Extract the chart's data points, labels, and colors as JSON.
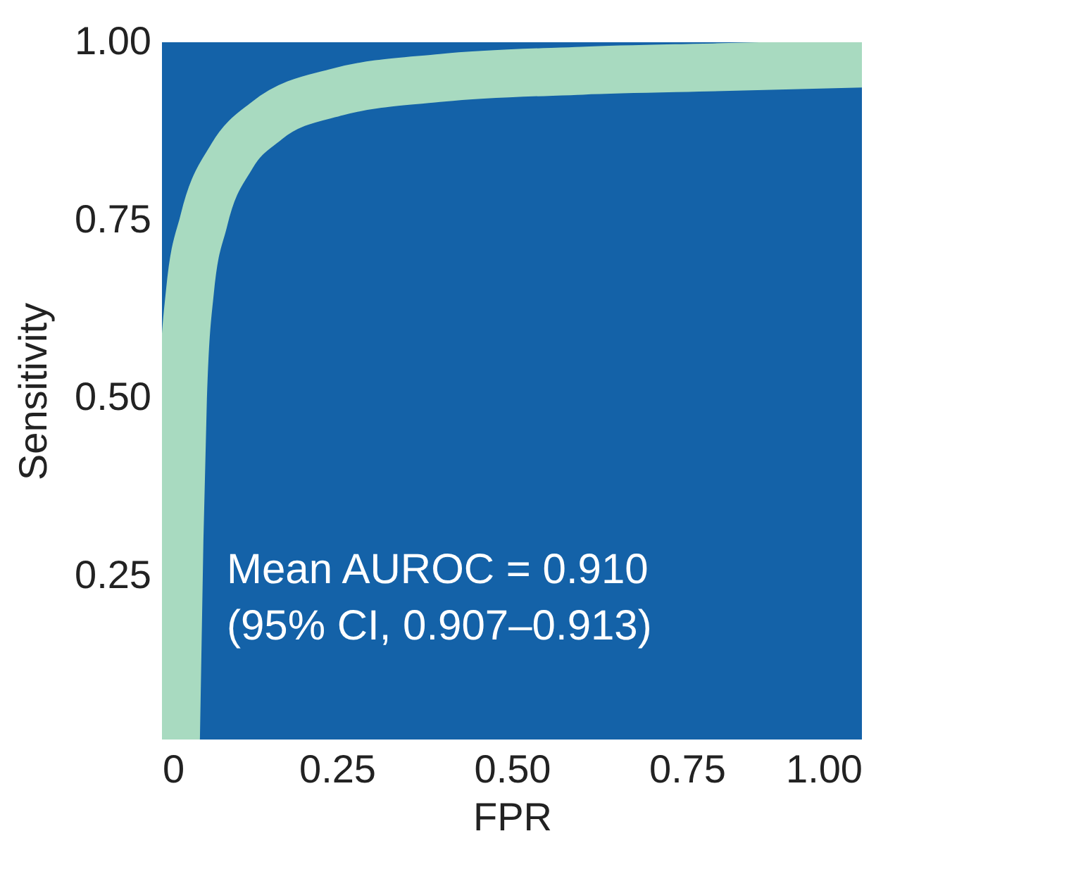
{
  "chart_data": {
    "type": "line",
    "xlabel": "FPR",
    "ylabel": "Sensitivity",
    "x": [
      0.02,
      0.025,
      0.03,
      0.04,
      0.06,
      0.1,
      0.15,
      0.25,
      0.4,
      0.6,
      0.8,
      1.0
    ],
    "series": [
      {
        "color": "#b8e8c2",
        "values": [
          0.02,
          0.3,
          0.5,
          0.65,
          0.75,
          0.84,
          0.89,
          0.93,
          0.95,
          0.96,
          0.965,
          0.97
        ]
      }
    ],
    "xlim": [
      0,
      1
    ],
    "ylim": [
      0.02,
      1
    ],
    "xticks": [
      0,
      0.25,
      {
        "value": 0.5,
        "label": "0.50"
      },
      0.75,
      {
        "value": 1.0,
        "label": "1.00"
      }
    ],
    "yticks": [
      0.25,
      {
        "value": 0.5,
        "label": "0.50"
      },
      0.75,
      {
        "value": 1.0,
        "label": "1.00"
      }
    ],
    "annotations": [
      "Mean AUROC = 0.910",
      "(95% CI, 0.907–0.913)"
    ],
    "grid": false,
    "marker": "none",
    "line_style": "solid"
  }
}
